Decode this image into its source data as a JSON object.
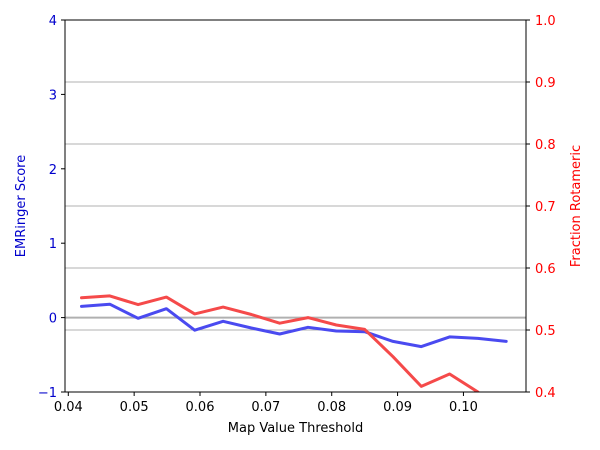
{
  "chart_data": {
    "type": "line",
    "xlabel": "Map Value Threshold",
    "ylabel_left": "EMRinger Score",
    "ylabel_right": "Fraction Rotameric",
    "xlim": [
      0.0395,
      0.1095
    ],
    "ylim_left": [
      -1,
      4
    ],
    "ylim_right": [
      0.4,
      1.0
    ],
    "x_ticks": [
      0.04,
      0.05,
      0.06,
      0.07,
      0.08,
      0.09,
      0.1
    ],
    "x_tick_labels": [
      "0.04",
      "0.05",
      "0.06",
      "0.07",
      "0.08",
      "0.09",
      "0.10"
    ],
    "y_left_ticks": [
      -1,
      0,
      1,
      2,
      3,
      4
    ],
    "y_left_tick_labels": [
      "−1",
      "0",
      "1",
      "2",
      "3",
      "4"
    ],
    "y_right_ticks": [
      0.4,
      0.5,
      0.6,
      0.7,
      0.8,
      0.9,
      1.0
    ],
    "y_right_tick_labels": [
      "0.4",
      "0.5",
      "0.6",
      "0.7",
      "0.8",
      "0.9",
      "1.0"
    ],
    "grid": "horizontal lines on right axis",
    "zero_line": 0,
    "colors": {
      "left_axis": "#0000cc",
      "right_axis": "#ff0000",
      "emringer": "#4a4af0",
      "rotameric": "#f54a4a",
      "grid": "#b0b0b0"
    },
    "series": [
      {
        "axis": "left",
        "x": [
          0.042,
          0.0463,
          0.0506,
          0.0549,
          0.0592,
          0.0635,
          0.0678,
          0.0721,
          0.0764,
          0.0807,
          0.085,
          0.0893,
          0.0936,
          0.0979,
          0.1022,
          0.1065
        ],
        "values": [
          0.15,
          0.18,
          -0.01,
          0.12,
          -0.17,
          -0.05,
          -0.14,
          -0.22,
          -0.13,
          -0.18,
          -0.19,
          -0.32,
          -0.39,
          -0.26,
          -0.28,
          -0.32
        ]
      },
      {
        "axis": "right",
        "x": [
          0.042,
          0.0463,
          0.0506,
          0.0549,
          0.0592,
          0.0635,
          0.0678,
          0.0721,
          0.0764,
          0.0807,
          0.085,
          0.0893,
          0.0936,
          0.0979,
          0.1022
        ],
        "values": [
          0.552,
          0.555,
          0.541,
          0.553,
          0.526,
          0.537,
          0.525,
          0.511,
          0.52,
          0.508,
          0.501,
          0.457,
          0.409,
          0.429,
          0.4
        ]
      }
    ]
  }
}
